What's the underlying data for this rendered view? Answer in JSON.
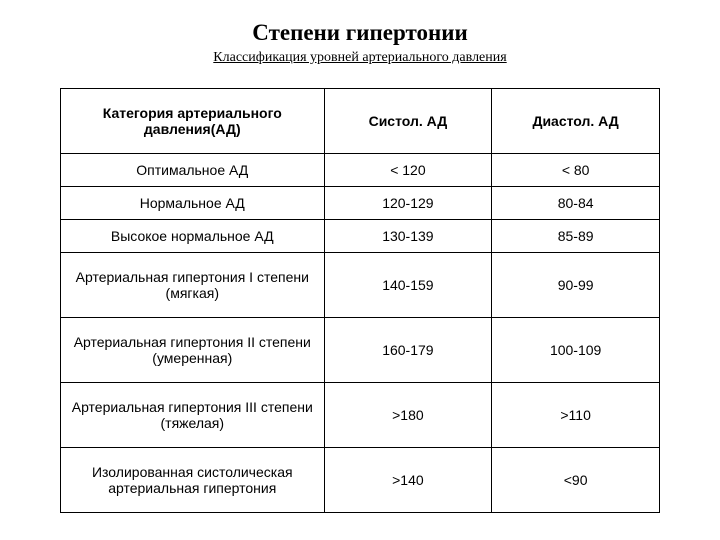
{
  "title": "Степени гипертонии",
  "subtitle": "Классификация уровней артериального давления",
  "table": {
    "columns": [
      "Категория артериального давления(АД)",
      "Систол. АД",
      "Диастол. АД"
    ],
    "rows": [
      {
        "category": "Оптимальное АД",
        "systolic": "< 120",
        "diastolic": "< 80",
        "tall": false
      },
      {
        "category": "Нормальное АД",
        "systolic": "120-129",
        "diastolic": "80-84",
        "tall": false
      },
      {
        "category": "Высокое нормальное АД",
        "systolic": "130-139",
        "diastolic": "85-89",
        "tall": false
      },
      {
        "category": "Артериальная гипертония I степени (мягкая)",
        "systolic": "140-159",
        "diastolic": "90-99",
        "tall": true
      },
      {
        "category": "Артериальная гипертония II степени (умеренная)",
        "systolic": "160-179",
        "diastolic": "100-109",
        "tall": true
      },
      {
        "category": "Артериальная гипертония III степени (тяжелая)",
        "systolic": ">180",
        "diastolic": ">110",
        "tall": true
      },
      {
        "category": "Изолированная систолическая артериальная гипертония",
        "systolic": ">140",
        "diastolic": "<90",
        "tall": true
      }
    ],
    "border_color": "#000000",
    "background_color": "#ffffff",
    "header_fontsize": 14,
    "cell_fontsize": 14,
    "col_widths_pct": [
      44,
      28,
      28
    ]
  }
}
